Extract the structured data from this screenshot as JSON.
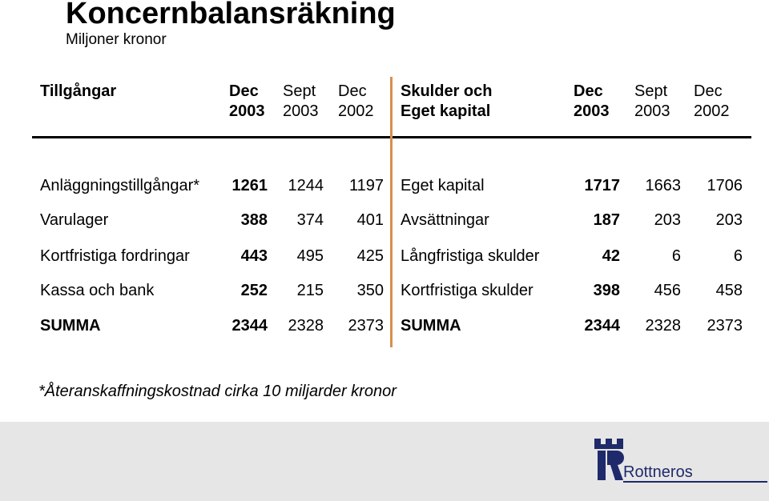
{
  "title": "Koncernbalansräkning",
  "subtitle": "Miljoner kronor",
  "assets": {
    "heading": "Tillgångar",
    "columns": [
      {
        "line1": "Dec",
        "line2": "2003"
      },
      {
        "line1": "Sept",
        "line2": "2003"
      },
      {
        "line1": "Dec",
        "line2": "2002"
      }
    ],
    "rows": [
      {
        "label": "Anläggningstillgångar*",
        "values": [
          "1261",
          "1244",
          "1197"
        ]
      },
      {
        "label": "Varulager",
        "values": [
          "388",
          "374",
          "401"
        ]
      },
      {
        "label": "Kortfristiga fordringar",
        "values": [
          "443",
          "495",
          "425"
        ]
      },
      {
        "label": "Kassa och bank",
        "values": [
          "252",
          "215",
          "350"
        ]
      },
      {
        "label": "SUMMA",
        "values": [
          "2344",
          "2328",
          "2373"
        ]
      }
    ]
  },
  "liabilities": {
    "heading_line1": "Skulder och",
    "heading_line2": "Eget kapital",
    "columns": [
      {
        "line1": "Dec",
        "line2": "2003"
      },
      {
        "line1": "Sept",
        "line2": "2003"
      },
      {
        "line1": "Dec",
        "line2": "2002"
      }
    ],
    "rows": [
      {
        "label": "Eget kapital",
        "values": [
          "1717",
          "1663",
          "1706"
        ]
      },
      {
        "label": "Avsättningar",
        "values": [
          "187",
          "203",
          "203"
        ]
      },
      {
        "label": "Långfristiga skulder",
        "values": [
          "42",
          "6",
          "6"
        ]
      },
      {
        "label": "Kortfristiga skulder",
        "values": [
          "398",
          "456",
          "458"
        ]
      },
      {
        "label": "SUMMA",
        "values": [
          "2344",
          "2328",
          "2373"
        ]
      }
    ]
  },
  "footnote": "*Återanskaffningskostnad cirka 10 miljarder kronor",
  "brand": {
    "name": "Rottneros",
    "logo_icon": "castle-tower-r-icon",
    "color": "#1f2a6b"
  },
  "colors": {
    "divider": "#d98e4e",
    "footer_bg": "#e6e6e6"
  }
}
